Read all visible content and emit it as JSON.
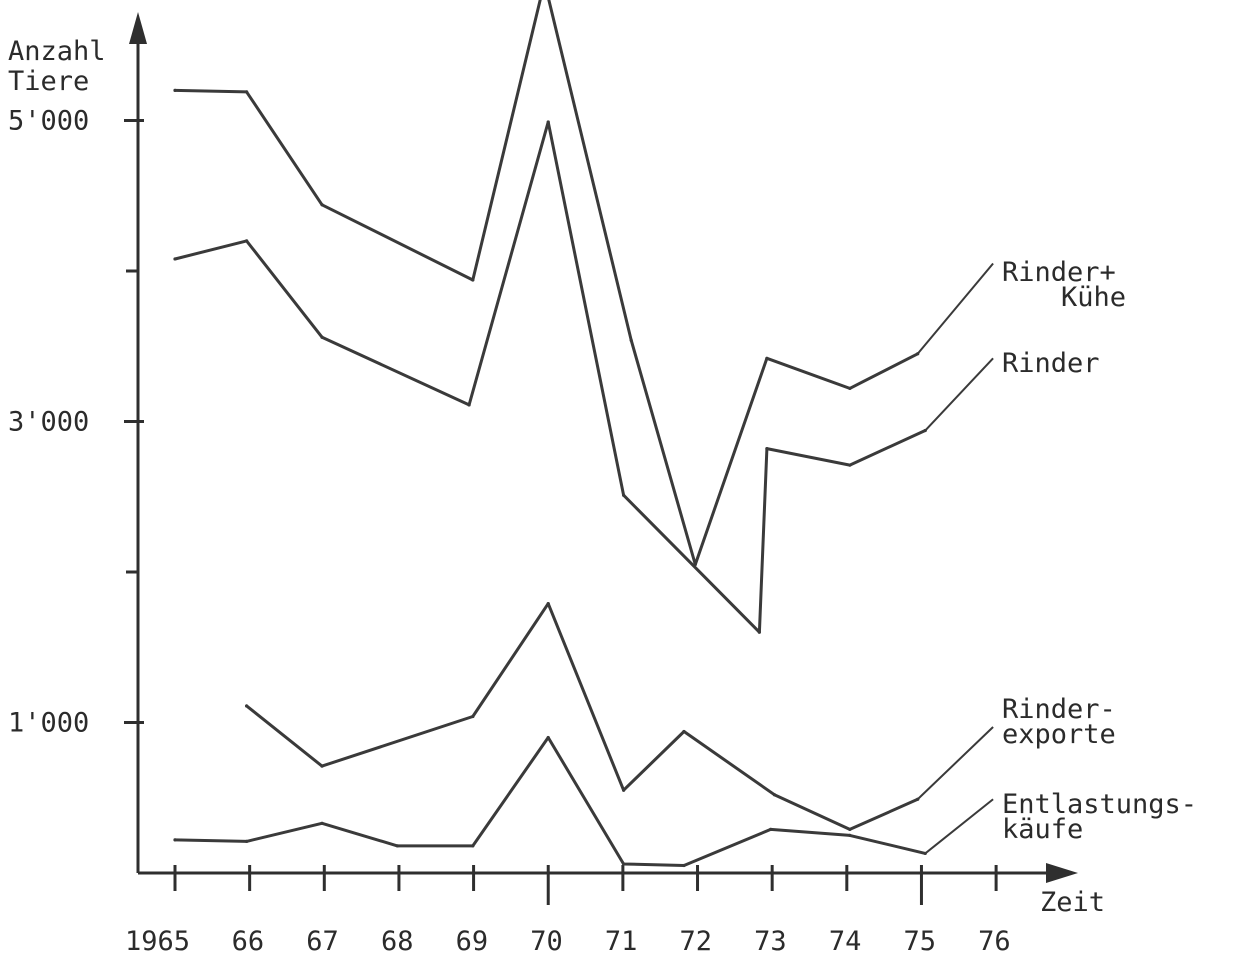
{
  "chart_data": {
    "type": "line",
    "ylabel_lines": [
      "Anzahl",
      "Tiere"
    ],
    "xlabel": "Zeit",
    "x_tick_labels": [
      "1965",
      "66",
      "67",
      "68",
      "69",
      "70",
      "71",
      "72",
      "73",
      "74",
      "75",
      "76"
    ],
    "y_tick_labels": [
      {
        "value": 5000,
        "label": "5'000"
      },
      {
        "value": 3000,
        "label": "3'000"
      },
      {
        "value": 1000,
        "label": "1'000"
      }
    ],
    "y_unlabeled_ticks": [
      4000,
      2000
    ],
    "ylim": [
      0,
      5900
    ],
    "grid": false,
    "series": [
      {
        "name": "Rinder+ Kühe",
        "label_lines": [
          "Rinder+",
          "Kühe"
        ],
        "points": [
          [
            1965.0,
            5200
          ],
          [
            1965.95,
            5190
          ],
          [
            1966.95,
            4440
          ],
          [
            1968.95,
            3940
          ],
          [
            1969.9,
            5920
          ],
          [
            1971.05,
            3540
          ],
          [
            1971.9,
            2050
          ],
          [
            1972.85,
            3420
          ],
          [
            1973.95,
            3220
          ],
          [
            1974.85,
            3450
          ]
        ],
        "label_anchor": [
          1975.85,
          4050
        ]
      },
      {
        "name": "Rinder",
        "label_lines": [
          "Rinder"
        ],
        "points": [
          [
            1965.0,
            4080
          ],
          [
            1965.95,
            4200
          ],
          [
            1966.95,
            3560
          ],
          [
            1968.9,
            3110
          ],
          [
            1969.95,
            4990
          ],
          [
            1970.95,
            2510
          ],
          [
            1972.75,
            1600
          ],
          [
            1972.85,
            2820
          ],
          [
            1973.95,
            2710
          ],
          [
            1974.95,
            2940
          ]
        ],
        "label_anchor": [
          1975.85,
          3420
        ]
      },
      {
        "name": "Rinder- exporte",
        "label_lines": [
          "Rinder-",
          "exporte"
        ],
        "points": [
          [
            1965.95,
            1110
          ],
          [
            1966.95,
            710
          ],
          [
            1968.95,
            1040
          ],
          [
            1969.95,
            1790
          ],
          [
            1970.95,
            550
          ],
          [
            1971.75,
            940
          ],
          [
            1972.95,
            520
          ],
          [
            1973.95,
            290
          ],
          [
            1974.85,
            490
          ]
        ],
        "label_anchor": [
          1975.85,
          970
        ]
      },
      {
        "name": "Entlastungs- käufe",
        "label_lines": [
          "Entlastungs-",
          "käufe"
        ],
        "points": [
          [
            1965.0,
            220
          ],
          [
            1965.95,
            210
          ],
          [
            1966.95,
            330
          ],
          [
            1967.95,
            180
          ],
          [
            1968.95,
            180
          ],
          [
            1969.95,
            900
          ],
          [
            1970.95,
            60
          ],
          [
            1971.75,
            50
          ],
          [
            1972.9,
            290
          ],
          [
            1973.95,
            250
          ],
          [
            1974.95,
            130
          ]
        ],
        "label_anchor": [
          1975.85,
          490
        ]
      }
    ]
  }
}
